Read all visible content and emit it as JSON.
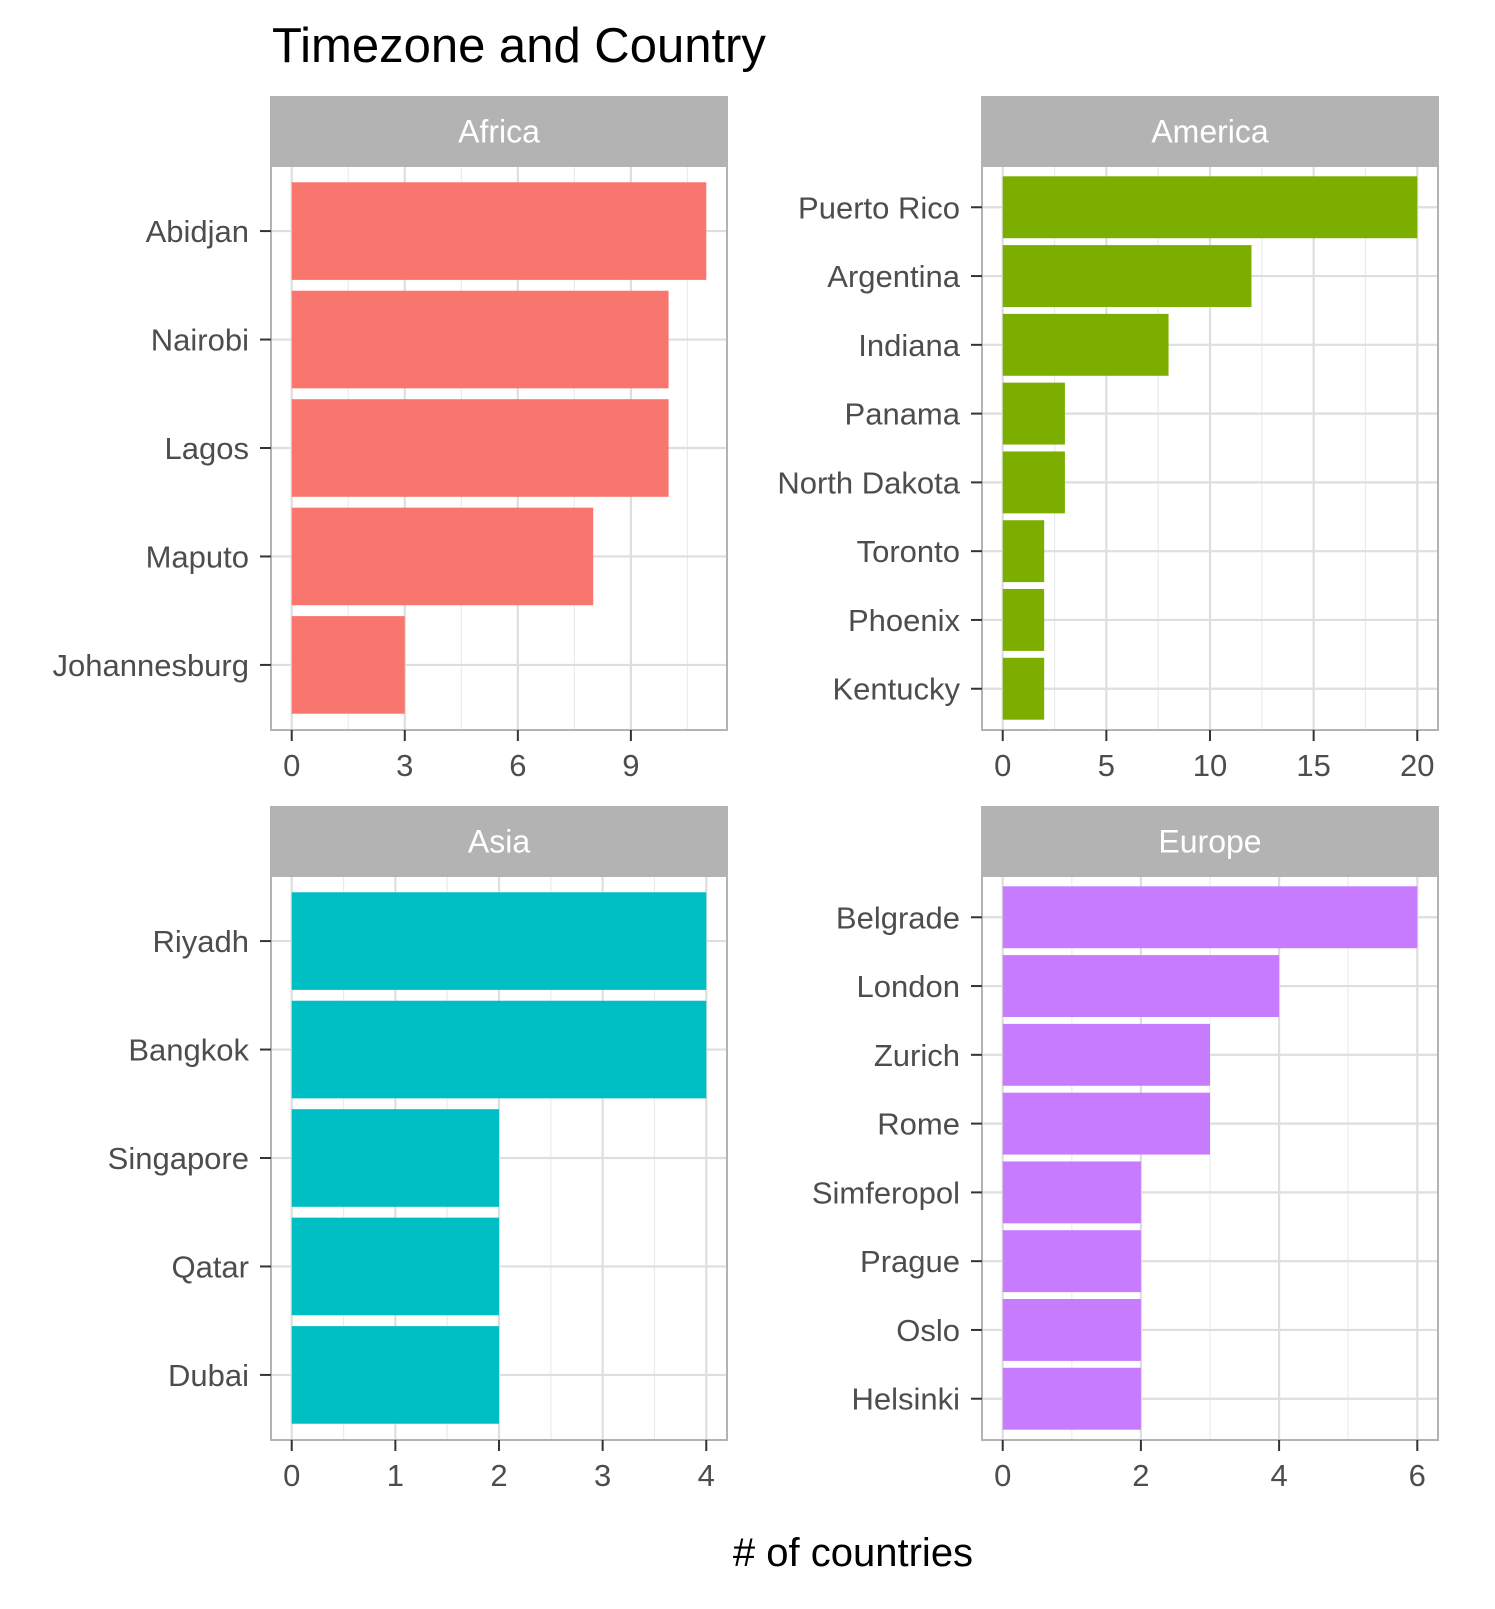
{
  "chart_data": {
    "type": "bar",
    "orientation": "horizontal",
    "title": "Timezone and Country",
    "xlabel": "# of countries",
    "ylabel": "",
    "grid": true,
    "legend": "none",
    "facets": [
      {
        "name": "Africa",
        "color": "#F8766D",
        "categories": [
          "Abidjan",
          "Nairobi",
          "Lagos",
          "Maputo",
          "Johannesburg"
        ],
        "values": [
          11,
          10,
          10,
          8,
          3
        ],
        "xlim": [
          0,
          11
        ],
        "xticks": [
          0,
          3,
          6,
          9
        ]
      },
      {
        "name": "America",
        "color": "#7CAE00",
        "categories": [
          "Puerto Rico",
          "Argentina",
          "Indiana",
          "Panama",
          "North Dakota",
          "Toronto",
          "Phoenix",
          "Kentucky"
        ],
        "values": [
          20,
          12,
          8,
          3,
          3,
          2,
          2,
          2
        ],
        "xlim": [
          0,
          20
        ],
        "xticks": [
          0,
          5,
          10,
          15,
          20
        ]
      },
      {
        "name": "Asia",
        "color": "#00BFC4",
        "categories": [
          "Riyadh",
          "Bangkok",
          "Singapore",
          "Qatar",
          "Dubai"
        ],
        "values": [
          4,
          4,
          2,
          2,
          2
        ],
        "xlim": [
          0,
          4
        ],
        "xticks": [
          0,
          1,
          2,
          3,
          4
        ]
      },
      {
        "name": "Europe",
        "color": "#C77CFF",
        "categories": [
          "Belgrade",
          "London",
          "Zurich",
          "Rome",
          "Simferopol",
          "Prague",
          "Oslo",
          "Helsinki"
        ],
        "values": [
          6,
          4,
          3,
          3,
          2,
          2,
          2,
          2
        ],
        "xlim": [
          0,
          6
        ],
        "xticks": [
          0,
          2,
          4,
          6
        ]
      }
    ]
  }
}
